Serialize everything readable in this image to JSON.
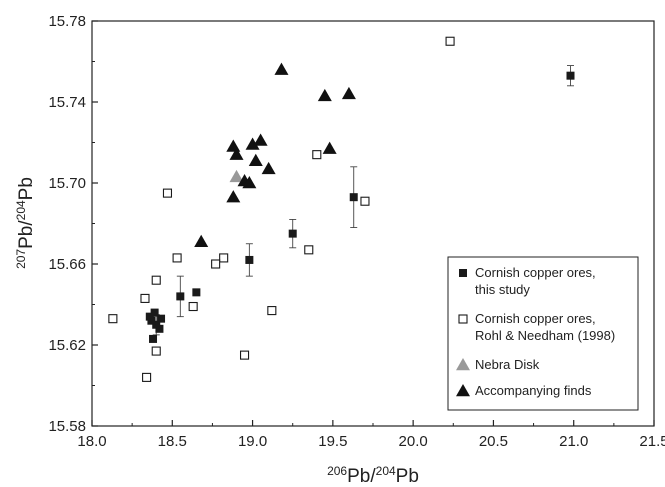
{
  "chart_data": {
    "type": "scatter",
    "xlabel": {
      "sup1": "206",
      "base1": "Pb/",
      "sup2": "204",
      "base2": "Pb"
    },
    "ylabel": {
      "sup1": "207",
      "base1": "Pb/",
      "sup2": "204",
      "base2": "Pb"
    },
    "xlim": [
      18.0,
      21.5
    ],
    "ylim": [
      15.58,
      15.78
    ],
    "xticks": [
      "18.0",
      "18.5",
      "19.0",
      "19.5",
      "20.0",
      "20.5",
      "21.0",
      "21.5"
    ],
    "yticks": [
      "15.58",
      "15.62",
      "15.66",
      "15.70",
      "15.74",
      "15.78"
    ],
    "grid": false,
    "legend_position": "bottom-right",
    "series": [
      {
        "name": "Cornish copper ores, this study",
        "name_lines": [
          "Cornish copper ores,",
          "this study"
        ],
        "marker": "filled-square",
        "color": "#1a1a1a",
        "points": [
          {
            "x": 20.98,
            "y": 15.753,
            "err": 0.005
          },
          {
            "x": 19.63,
            "y": 15.693,
            "err": 0.015
          },
          {
            "x": 19.25,
            "y": 15.675,
            "err": 0.007
          },
          {
            "x": 18.98,
            "y": 15.662,
            "err": 0.008
          },
          {
            "x": 18.65,
            "y": 15.646
          },
          {
            "x": 18.55,
            "y": 15.644,
            "err": 0.01
          },
          {
            "x": 18.43,
            "y": 15.633
          },
          {
            "x": 18.4,
            "y": 15.63,
            "err": 0.005
          },
          {
            "x": 18.37,
            "y": 15.632
          },
          {
            "x": 18.36,
            "y": 15.634
          },
          {
            "x": 18.42,
            "y": 15.628
          },
          {
            "x": 18.39,
            "y": 15.636
          },
          {
            "x": 18.38,
            "y": 15.623
          }
        ]
      },
      {
        "name": "Cornish copper ores, Rohl & Needham (1998)",
        "name_lines": [
          "Cornish copper ores,",
          "Rohl & Needham (1998)"
        ],
        "marker": "open-square",
        "color": "#1a1a1a",
        "points": [
          {
            "x": 20.23,
            "y": 15.77
          },
          {
            "x": 19.7,
            "y": 15.691
          },
          {
            "x": 19.4,
            "y": 15.714
          },
          {
            "x": 19.35,
            "y": 15.667
          },
          {
            "x": 19.12,
            "y": 15.637
          },
          {
            "x": 18.95,
            "y": 15.615
          },
          {
            "x": 18.82,
            "y": 15.663
          },
          {
            "x": 18.77,
            "y": 15.66
          },
          {
            "x": 18.63,
            "y": 15.639
          },
          {
            "x": 18.53,
            "y": 15.663
          },
          {
            "x": 18.47,
            "y": 15.695
          },
          {
            "x": 18.4,
            "y": 15.652
          },
          {
            "x": 18.4,
            "y": 15.617
          },
          {
            "x": 18.34,
            "y": 15.604
          },
          {
            "x": 18.33,
            "y": 15.643
          },
          {
            "x": 18.13,
            "y": 15.633
          }
        ]
      },
      {
        "name": "Nebra Disk",
        "name_lines": [
          "Nebra Disk"
        ],
        "marker": "filled-triangle",
        "color": "#999999",
        "points": [
          {
            "x": 18.9,
            "y": 15.703
          }
        ]
      },
      {
        "name": "Accompanying finds",
        "name_lines": [
          "Accompanying finds"
        ],
        "marker": "filled-triangle",
        "color": "#111111",
        "points": [
          {
            "x": 19.18,
            "y": 15.756
          },
          {
            "x": 19.45,
            "y": 15.743
          },
          {
            "x": 19.6,
            "y": 15.744
          },
          {
            "x": 19.48,
            "y": 15.717
          },
          {
            "x": 19.05,
            "y": 15.721
          },
          {
            "x": 19.0,
            "y": 15.719
          },
          {
            "x": 18.88,
            "y": 15.718
          },
          {
            "x": 18.9,
            "y": 15.714
          },
          {
            "x": 19.02,
            "y": 15.711
          },
          {
            "x": 19.1,
            "y": 15.707
          },
          {
            "x": 18.95,
            "y": 15.701
          },
          {
            "x": 18.98,
            "y": 15.7
          },
          {
            "x": 18.88,
            "y": 15.693
          },
          {
            "x": 18.68,
            "y": 15.671
          }
        ]
      }
    ]
  }
}
